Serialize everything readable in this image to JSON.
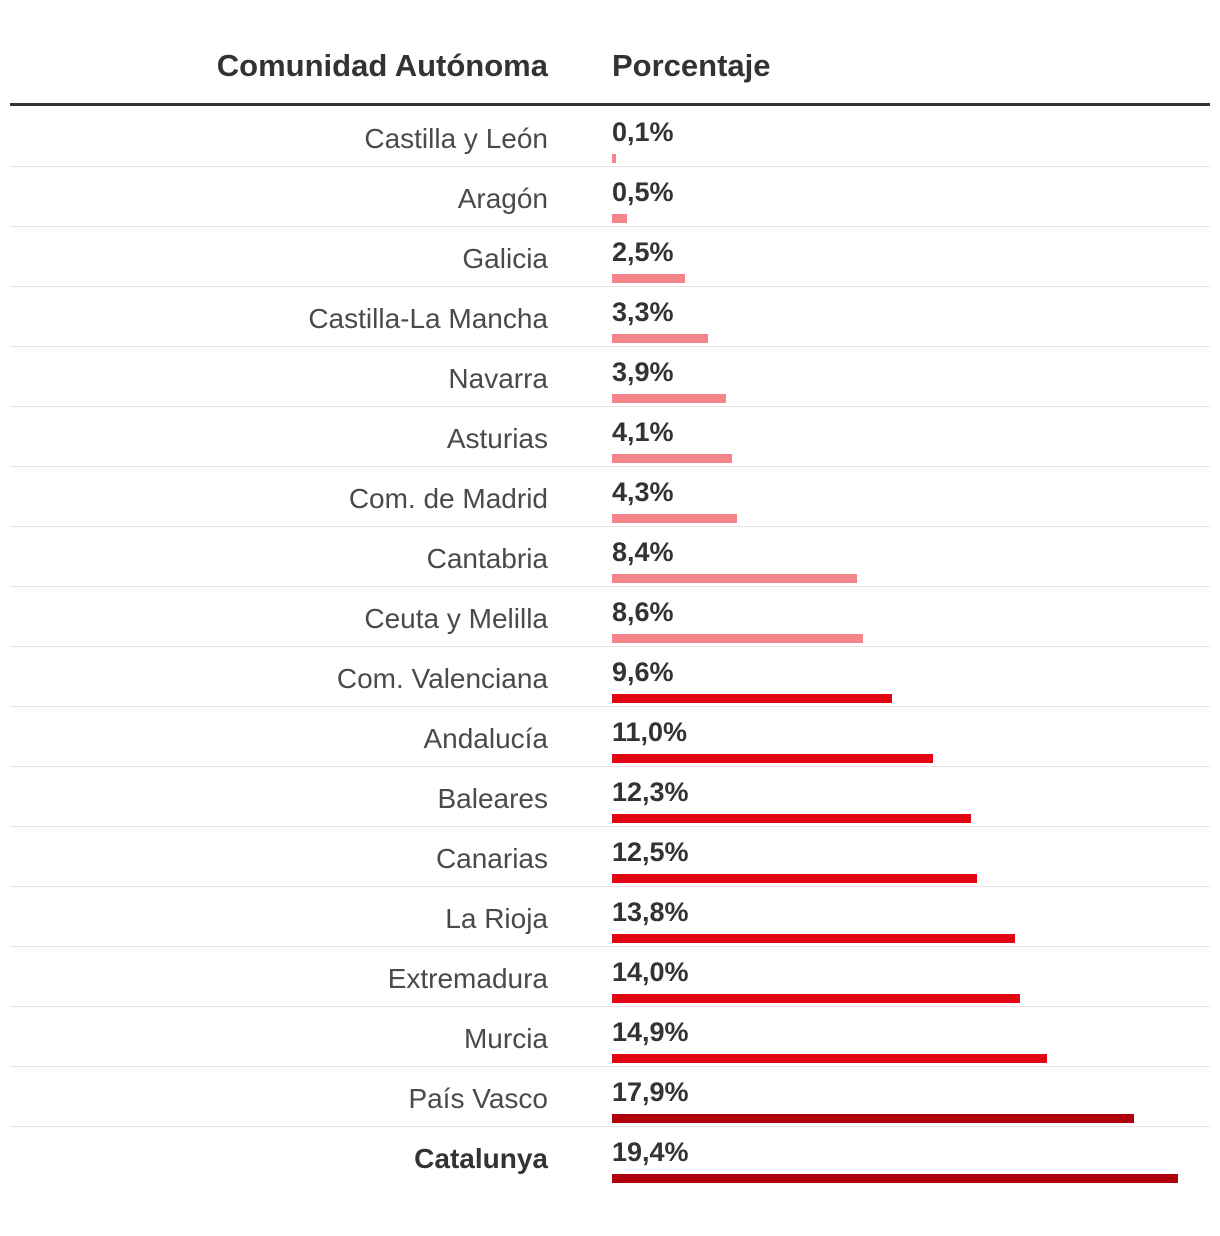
{
  "chart_data": {
    "type": "bar",
    "orientation": "horizontal",
    "header": {
      "category_label": "Comunidad Autónoma",
      "value_label": "Porcentaje"
    },
    "xlim": [
      0,
      19.4
    ],
    "colors": {
      "low": "#f4858a",
      "mid": "#e30613",
      "high": "#b0000b"
    },
    "rows": [
      {
        "name": "Castilla y León",
        "value": 0.1,
        "label": "0,1%",
        "tier": "low",
        "bold": false
      },
      {
        "name": "Aragón",
        "value": 0.5,
        "label": "0,5%",
        "tier": "low",
        "bold": false
      },
      {
        "name": "Galicia",
        "value": 2.5,
        "label": "2,5%",
        "tier": "low",
        "bold": false
      },
      {
        "name": "Castilla-La Mancha",
        "value": 3.3,
        "label": "3,3%",
        "tier": "low",
        "bold": false
      },
      {
        "name": "Navarra",
        "value": 3.9,
        "label": "3,9%",
        "tier": "low",
        "bold": false
      },
      {
        "name": "Asturias",
        "value": 4.1,
        "label": "4,1%",
        "tier": "low",
        "bold": false
      },
      {
        "name": "Com. de Madrid",
        "value": 4.3,
        "label": "4,3%",
        "tier": "low",
        "bold": false
      },
      {
        "name": "Cantabria",
        "value": 8.4,
        "label": "8,4%",
        "tier": "low",
        "bold": false
      },
      {
        "name": "Ceuta y Melilla",
        "value": 8.6,
        "label": "8,6%",
        "tier": "low",
        "bold": false
      },
      {
        "name": "Com. Valenciana",
        "value": 9.6,
        "label": "9,6%",
        "tier": "mid",
        "bold": false
      },
      {
        "name": "Andalucía",
        "value": 11.0,
        "label": "11,0%",
        "tier": "mid",
        "bold": false
      },
      {
        "name": "Baleares",
        "value": 12.3,
        "label": "12,3%",
        "tier": "mid",
        "bold": false
      },
      {
        "name": "Canarias",
        "value": 12.5,
        "label": "12,5%",
        "tier": "mid",
        "bold": false
      },
      {
        "name": "La Rioja",
        "value": 13.8,
        "label": "13,8%",
        "tier": "mid",
        "bold": false
      },
      {
        "name": "Extremadura",
        "value": 14.0,
        "label": "14,0%",
        "tier": "mid",
        "bold": false
      },
      {
        "name": "Murcia",
        "value": 14.9,
        "label": "14,9%",
        "tier": "mid",
        "bold": false
      },
      {
        "name": "País Vasco",
        "value": 17.9,
        "label": "17,9%",
        "tier": "high",
        "bold": false
      },
      {
        "name": "Catalunya",
        "value": 19.4,
        "label": "19,4%",
        "tier": "high",
        "bold": true
      }
    ]
  }
}
